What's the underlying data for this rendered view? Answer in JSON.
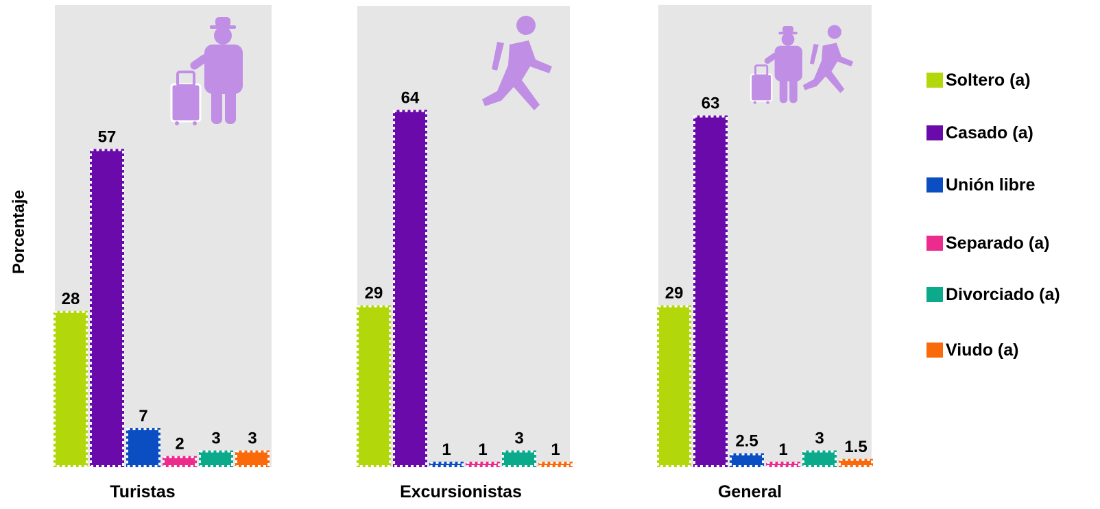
{
  "chart_data": {
    "type": "bar",
    "ylabel": "Porcentaje",
    "ylim": [
      0,
      70
    ],
    "categories": [
      "Turistas",
      "Excursionistas",
      "General"
    ],
    "series": [
      {
        "name": "Soltero (a)",
        "color": "#b2d80c",
        "values": [
          28,
          29,
          29
        ]
      },
      {
        "name": "Casado (a)",
        "color": "#6a0aaa",
        "values": [
          57,
          64,
          63
        ]
      },
      {
        "name": "Unión libre",
        "color": "#0a4ec2",
        "values": [
          7,
          1,
          2.5
        ]
      },
      {
        "name": "Separado (a)",
        "color": "#ec2c8c",
        "values": [
          2,
          1,
          1
        ]
      },
      {
        "name": "Divorciado (a)",
        "color": "#0aaa8a",
        "values": [
          3,
          3,
          3
        ]
      },
      {
        "name": "Viudo (a)",
        "color": "#fa6a0a",
        "values": [
          3,
          1,
          1.5
        ]
      }
    ],
    "data_labels": [
      [
        "28",
        "57",
        "7",
        "2",
        "3",
        "3"
      ],
      [
        "29",
        "64",
        "1",
        "1",
        "3",
        "1"
      ],
      [
        "29",
        "63",
        "2.5",
        "1",
        "3",
        "1.5"
      ]
    ],
    "panel_background": "#e6e6e6",
    "icon_color": "#c08ee4",
    "panel_icons": [
      [
        "tourist-with-suitcase-icon"
      ],
      [
        "walking-person-icon"
      ],
      [
        "tourist-with-suitcase-icon",
        "walking-person-icon"
      ]
    ],
    "legend_position": "right"
  }
}
